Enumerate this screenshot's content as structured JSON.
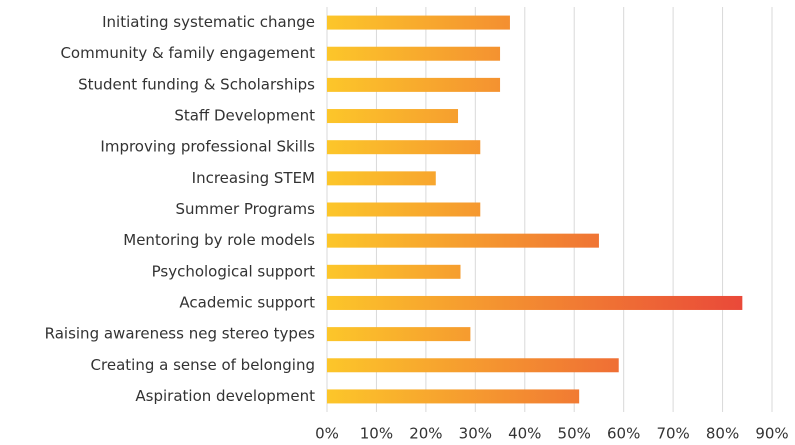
{
  "chart_data": {
    "type": "hbar",
    "categories": [
      "Initiating systematic change",
      "Community & family engagement",
      "Student funding & Scholarships",
      "Staff Development",
      "Improving professional Skills",
      "Increasing STEM",
      "Summer Programs",
      "Mentoring by role models",
      "Psychological support",
      "Academic support",
      "Raising awareness neg stereo types",
      "Creating a sense of belonging",
      "Aspiration development"
    ],
    "values": [
      37,
      35,
      35,
      26.5,
      31,
      22,
      31,
      55,
      27,
      84,
      29,
      59,
      51
    ],
    "colors": [
      "#fcc62a",
      "#e8403a"
    ],
    "xlim": [
      0,
      90
    ],
    "xticks": [
      {
        "value": 0,
        "label": "0%"
      },
      {
        "value": 10,
        "label": "10%"
      },
      {
        "value": 20,
        "label": "20%"
      },
      {
        "value": 30,
        "label": "30%"
      },
      {
        "value": 40,
        "label": "40%"
      },
      {
        "value": 50,
        "label": "50%"
      },
      {
        "value": 60,
        "label": "60%"
      },
      {
        "value": 70,
        "label": "70%"
      },
      {
        "value": 80,
        "label": "80%"
      },
      {
        "value": 90,
        "label": "90%"
      }
    ],
    "grid": true
  }
}
